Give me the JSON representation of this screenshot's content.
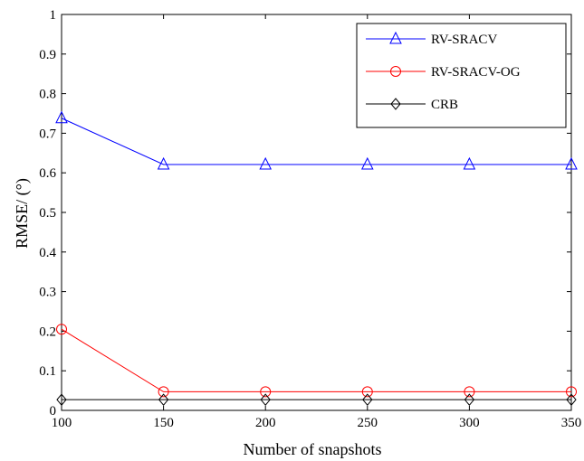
{
  "chart_data": {
    "type": "line",
    "title": "",
    "xlabel": "Number of snapshots",
    "ylabel": "RMSE/ (°)",
    "xlim": [
      100,
      350
    ],
    "ylim": [
      0,
      1
    ],
    "x_ticks": [
      100,
      150,
      200,
      250,
      300,
      350
    ],
    "y_ticks": [
      0,
      0.1,
      0.2,
      0.3,
      0.4,
      0.5,
      0.6,
      0.7,
      0.8,
      0.9,
      1
    ],
    "x_tick_labels": [
      "100",
      "150",
      "200",
      "250",
      "300",
      "350"
    ],
    "y_tick_labels": [
      "0",
      "0.1",
      "0.2",
      "0.3",
      "0.4",
      "0.5",
      "0.6",
      "0.7",
      "0.8",
      "0.9",
      "1"
    ],
    "grid": false,
    "legend_position": "top-right",
    "x": [
      100,
      150,
      200,
      250,
      300,
      350
    ],
    "series": [
      {
        "name": "RV-SRACV",
        "color": "#0000ff",
        "marker": "triangle",
        "values": [
          0.738,
          0.621,
          0.621,
          0.621,
          0.621,
          0.621
        ]
      },
      {
        "name": "RV-SRACV-OG",
        "color": "#ff0000",
        "marker": "circle",
        "values": [
          0.205,
          0.047,
          0.047,
          0.047,
          0.047,
          0.047
        ]
      },
      {
        "name": "CRB",
        "color": "#000000",
        "marker": "diamond",
        "values": [
          0.027,
          0.027,
          0.027,
          0.027,
          0.027,
          0.027
        ]
      }
    ]
  }
}
